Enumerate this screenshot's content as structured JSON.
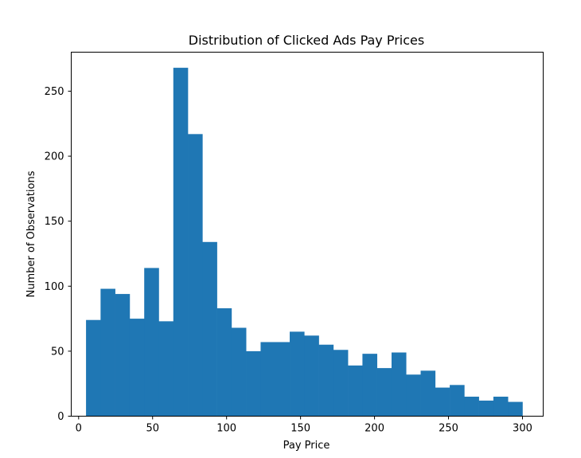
{
  "chart_data": {
    "type": "bar",
    "title": "Distribution of Clicked Ads Pay Prices",
    "xlabel": "Pay Price",
    "ylabel": "Number of Observations",
    "xlim": [
      -5,
      314
    ],
    "ylim": [
      0,
      280
    ],
    "x_ticks": [
      0,
      50,
      100,
      150,
      200,
      250,
      300
    ],
    "y_ticks": [
      0,
      50,
      100,
      150,
      200,
      250
    ],
    "bin_edges": [
      5,
      14.83,
      24.67,
      34.5,
      44.33,
      54.17,
      64,
      73.83,
      83.67,
      93.5,
      103.33,
      113.17,
      123,
      132.83,
      142.67,
      152.5,
      162.33,
      172.17,
      182,
      191.83,
      201.67,
      211.5,
      221.33,
      231.17,
      241,
      250.83,
      260.67,
      270.5,
      280.33,
      290.17,
      300
    ],
    "values": [
      74,
      98,
      94,
      75,
      114,
      73,
      268,
      217,
      134,
      83,
      68,
      50,
      57,
      57,
      65,
      62,
      55,
      51,
      39,
      48,
      37,
      49,
      32,
      35,
      22,
      24,
      15,
      12,
      15,
      11
    ],
    "bar_color": "#1f77b4",
    "grid": false,
    "legend": "none"
  }
}
